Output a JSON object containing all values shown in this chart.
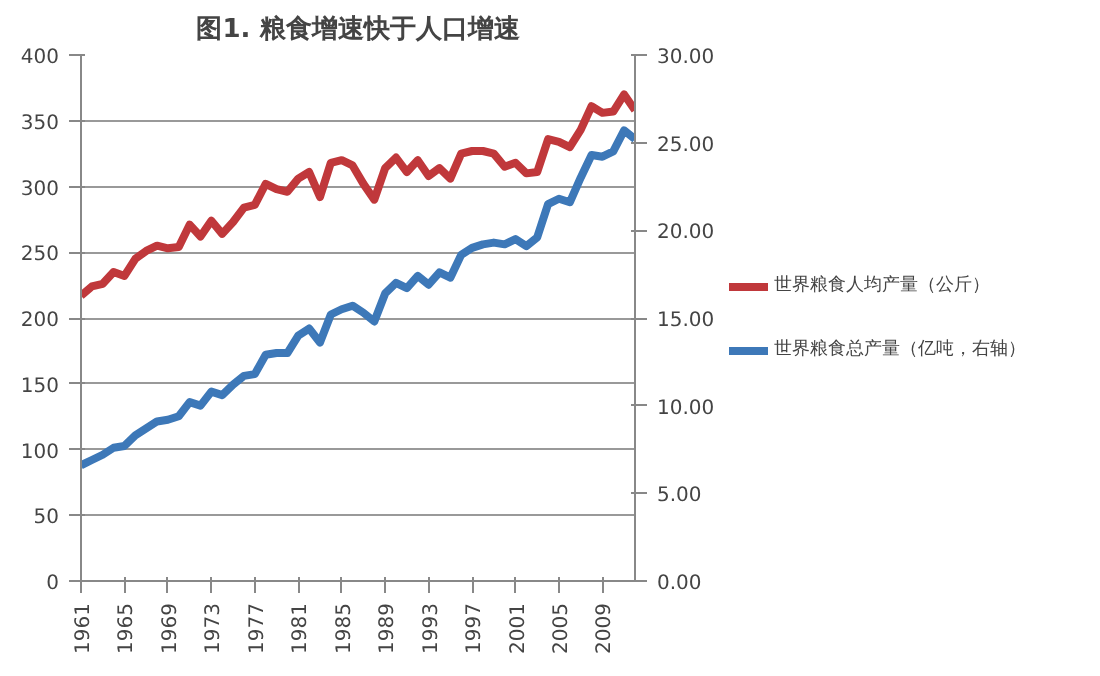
{
  "chart_data": {
    "type": "line",
    "title": "图1. 粮食增速快于人口增速",
    "x": [
      1961,
      1962,
      1963,
      1964,
      1965,
      1966,
      1967,
      1968,
      1969,
      1970,
      1971,
      1972,
      1973,
      1974,
      1975,
      1976,
      1977,
      1978,
      1979,
      1980,
      1981,
      1982,
      1983,
      1984,
      1985,
      1986,
      1987,
      1988,
      1989,
      1990,
      1991,
      1992,
      1993,
      1994,
      1995,
      1996,
      1997,
      1998,
      1999,
      2000,
      2001,
      2002,
      2003,
      2004,
      2005,
      2006,
      2007,
      2008,
      2009,
      2010,
      2011,
      2012
    ],
    "series": [
      {
        "name": "世界粮食人均产量（公斤）",
        "color": "#c0383b",
        "values": [
          217,
          224,
          226,
          235,
          232,
          245,
          251,
          255,
          253,
          254,
          271,
          262,
          274,
          264,
          273,
          284,
          286,
          302,
          298,
          296,
          306,
          311,
          292,
          318,
          320,
          316,
          302,
          290,
          314,
          322,
          311,
          320,
          308,
          314,
          306,
          325,
          327,
          327,
          325,
          315,
          318,
          310,
          311,
          336,
          334,
          330,
          343,
          361,
          356,
          357,
          370,
          358
        ]
      },
      {
        "name": "世界粮食总产量（亿吨，右轴）",
        "color": "#3d78b8",
        "axis": "y2",
        "values": [
          6.6,
          6.9,
          7.2,
          7.6,
          7.7,
          8.3,
          8.7,
          9.1,
          9.2,
          9.4,
          10.2,
          10.0,
          10.8,
          10.6,
          11.2,
          11.7,
          11.8,
          12.9,
          13.0,
          13.0,
          14.0,
          14.4,
          13.6,
          15.2,
          15.5,
          15.7,
          15.3,
          14.8,
          16.4,
          17.0,
          16.7,
          17.4,
          16.9,
          17.6,
          17.3,
          18.6,
          19.0,
          19.2,
          19.3,
          19.2,
          19.5,
          19.1,
          19.6,
          21.5,
          21.8,
          21.6,
          23.0,
          24.3,
          24.2,
          24.5,
          25.7,
          25.2
        ]
      }
    ],
    "xlim": [
      1961,
      2012
    ],
    "xticks": [
      1961,
      1965,
      1969,
      1973,
      1977,
      1981,
      1985,
      1989,
      1993,
      1997,
      2001,
      2005,
      2009
    ],
    "ylim": [
      0,
      400
    ],
    "yticks": [
      0,
      50,
      100,
      150,
      200,
      250,
      300,
      350,
      400
    ],
    "y2lim": [
      0,
      30
    ],
    "y2ticks": [
      {
        "value": 0,
        "label": "0.00"
      },
      {
        "value": 5,
        "label": "5.00"
      },
      {
        "value": 10,
        "label": "10.00"
      },
      {
        "value": 15,
        "label": "15.00"
      },
      {
        "value": 20,
        "label": "20.00"
      },
      {
        "value": 25,
        "label": "25.00"
      },
      {
        "value": 30,
        "label": "30.00"
      }
    ],
    "grid": "y",
    "legend": "right",
    "line_style": "solid"
  }
}
